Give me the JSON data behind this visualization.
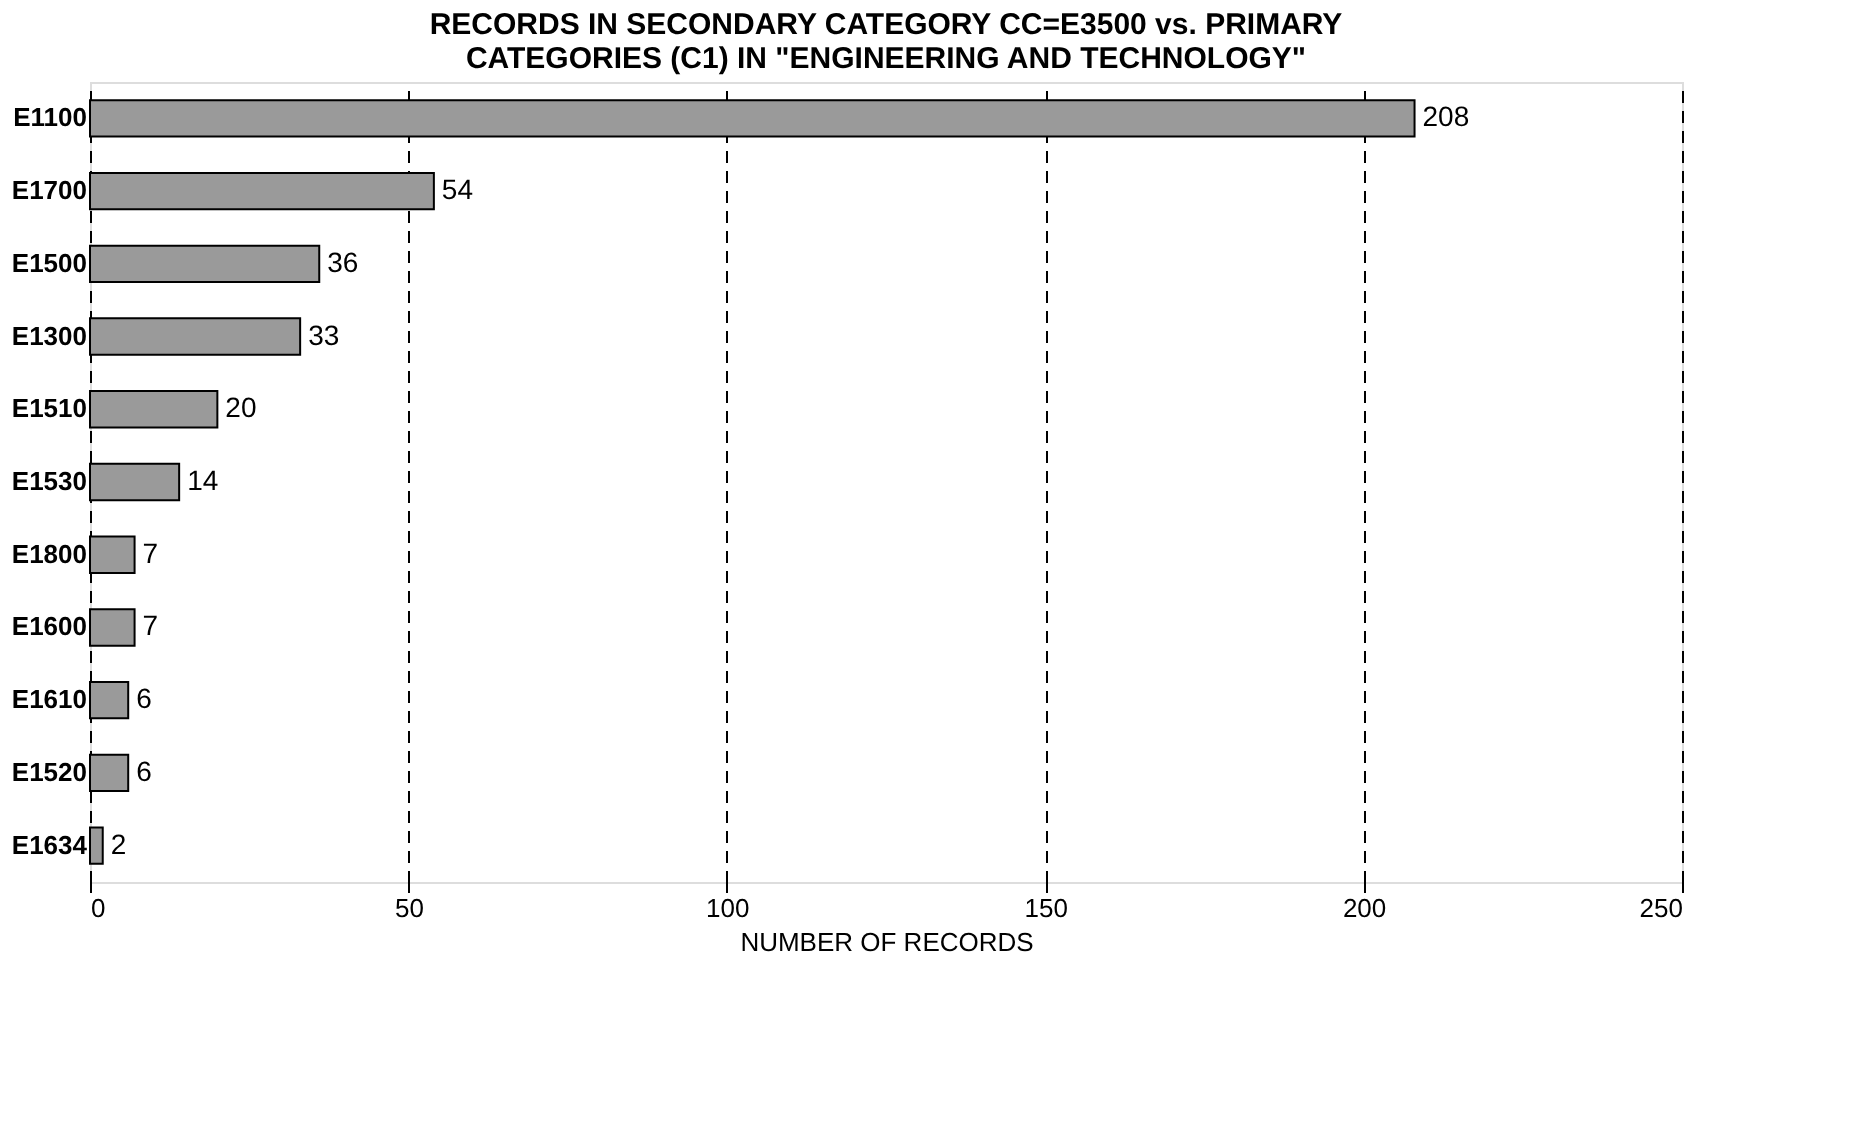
{
  "chart_data": {
    "type": "bar",
    "orientation": "horizontal",
    "title": "RECORDS IN SECONDARY CATEGORY CC=E3500 vs. PRIMARY CATEGORIES (C1) IN \"ENGINEERING AND TECHNOLOGY\"",
    "xlabel": "NUMBER OF RECORDS",
    "categories": [
      "E1100",
      "E1700",
      "E1500",
      "E1300",
      "E1510",
      "E1530",
      "E1800",
      "E1600",
      "E1610",
      "E1520",
      "E1634"
    ],
    "values": [
      208,
      54,
      36,
      33,
      20,
      14,
      7,
      7,
      6,
      6,
      2
    ],
    "color": "#9a9a9a",
    "xlim": [
      0,
      250
    ],
    "xticks": [
      0,
      50,
      100,
      150,
      200,
      250
    ],
    "grid": "x",
    "line_style": "dashed",
    "data_labels": true
  }
}
